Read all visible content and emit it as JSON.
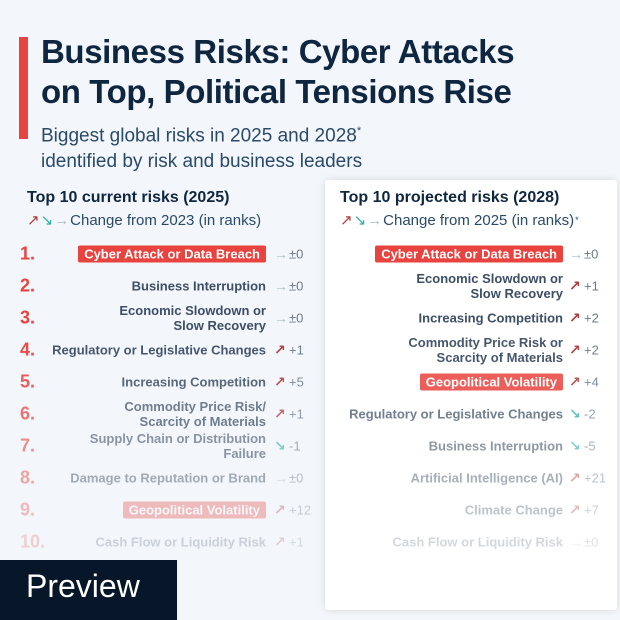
{
  "header": {
    "title_line1": "Business Risks: Cyber Attacks",
    "title_line2": "on Top, Political Tensions Rise",
    "subtitle_line1": "Biggest global risks in 2025 and 2028",
    "subtitle_asterisk": "*",
    "subtitle_line2": "identified by risk and business leaders"
  },
  "left": {
    "heading": "Top 10 current risks (2025)",
    "legend": "Change from 2023 (in ranks)",
    "items": [
      {
        "rank": "1.",
        "label": "Cyber Attack or Data Breach",
        "dir": "flat",
        "change": "±0",
        "highlight": true
      },
      {
        "rank": "2.",
        "label": "Business Interruption",
        "dir": "flat",
        "change": "±0"
      },
      {
        "rank": "3.",
        "label": "Economic Slowdown or\nSlow Recovery",
        "dir": "flat",
        "change": "±0"
      },
      {
        "rank": "4.",
        "label": "Regulatory or Legislative Changes",
        "dir": "up",
        "change": "+1"
      },
      {
        "rank": "5.",
        "label": "Increasing Competition",
        "dir": "up",
        "change": "+5"
      },
      {
        "rank": "6.",
        "label": "Commodity Price Risk/\nScarcity of Materials",
        "dir": "up",
        "change": "+1"
      },
      {
        "rank": "7.",
        "label": "Supply Chain or Distribution Failure",
        "dir": "down",
        "change": "-1"
      },
      {
        "rank": "8.",
        "label": "Damage to Reputation or Brand",
        "dir": "flat",
        "change": "±0"
      },
      {
        "rank": "9.",
        "label": "Geopolitical Volatility",
        "dir": "up",
        "change": "+12",
        "highlight": true
      },
      {
        "rank": "10.",
        "label": "Cash Flow or Liquidity Risk",
        "dir": "up",
        "change": "+1"
      }
    ]
  },
  "right": {
    "heading": "Top 10 projected risks (2028)",
    "legend": "Change from 2025 (in ranks)",
    "legend_asterisk": "*",
    "items": [
      {
        "label": "Cyber Attack or Data Breach",
        "dir": "flat",
        "change": "±0",
        "highlight": true
      },
      {
        "label": "Economic Slowdown or\nSlow Recovery",
        "dir": "up",
        "change": "+1"
      },
      {
        "label": "Increasing Competition",
        "dir": "up",
        "change": "+2"
      },
      {
        "label": "Commodity Price Risk or\nScarcity of Materials",
        "dir": "up",
        "change": "+2"
      },
      {
        "label": "Geopolitical Volatility",
        "dir": "up",
        "change": "+4",
        "highlight": true
      },
      {
        "label": "Regulatory or Legislative Changes",
        "dir": "down",
        "change": "-2"
      },
      {
        "label": "Business Interruption",
        "dir": "down",
        "change": "-5"
      },
      {
        "label": "Artificial Intelligence (AI)",
        "dir": "up",
        "change": "+21"
      },
      {
        "label": "Climate Change",
        "dir": "up",
        "change": "+7"
      },
      {
        "label": "Cash Flow or Liquidity Risk",
        "dir": "flat",
        "change": "±0"
      }
    ]
  },
  "arrows": {
    "up": "↗",
    "down": "↘",
    "flat": "→"
  },
  "colors": {
    "accent": "#e8433e",
    "up": "#b03a3a",
    "down": "#2ab0a0",
    "flat": "#a9bccb"
  },
  "badge": {
    "preview": "Preview"
  }
}
